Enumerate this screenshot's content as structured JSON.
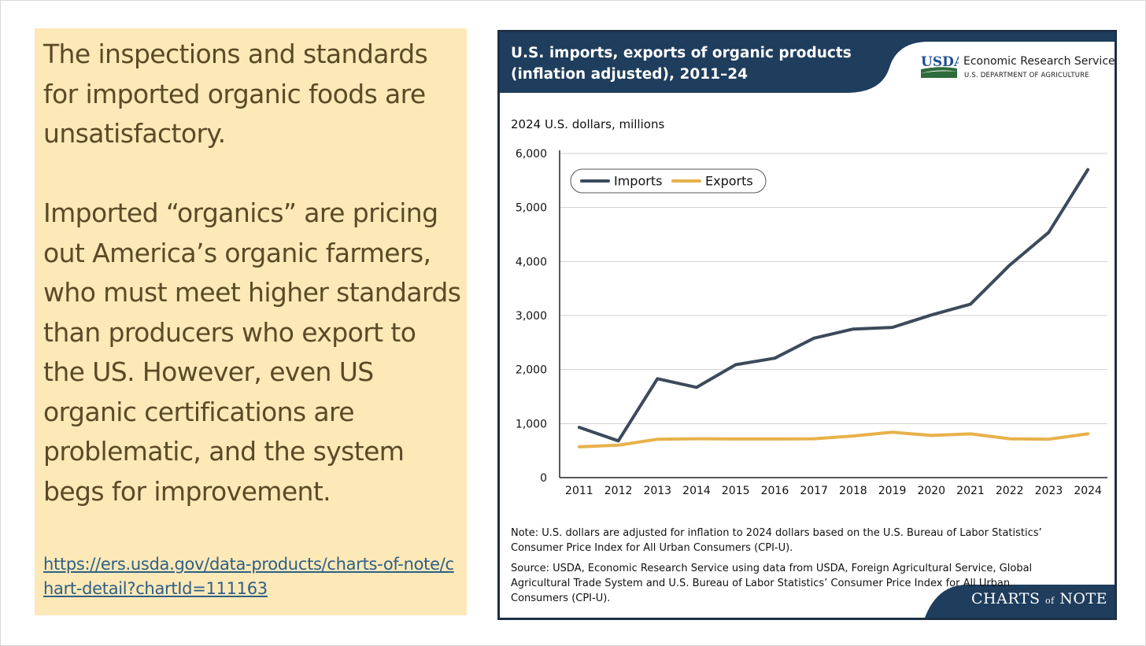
{
  "left_panel": {
    "paragraph1": "The inspections and standards for imported organic foods are unsatisfactory.",
    "paragraph2": "Imported “organics” are pricing out America’s organic farmers, who must meet higher standards than producers who export to the US. However, even US organic certifications are problematic, and the system begs for improvement.",
    "link_text": "https://ers.usda.gov/data-products/charts-of-note/chart-detail?chartId=111163"
  },
  "header": {
    "title": "U.S. imports, exports of organic products (inflation adjusted), 2011–24",
    "logo_text": "USDA",
    "agency_name": "Economic Research Service",
    "department": "U.S. DEPARTMENT OF AGRICULTURE"
  },
  "colors": {
    "navy": "#1f3d5c",
    "imports": "#3c4a5b",
    "exports": "#e8b14a",
    "usda_green": "#2e6b3a",
    "usda_blue": "#1d4f91"
  },
  "chart_data": {
    "type": "line",
    "ylabel": "2024 U.S. dollars, millions",
    "x": [
      "2011",
      "2012",
      "2013",
      "2014",
      "2015",
      "2016",
      "2017",
      "2018",
      "2019",
      "2020",
      "2021",
      "2022",
      "2023",
      "2024"
    ],
    "yticks": [
      "0",
      "1,000",
      "2,000",
      "3,000",
      "4,000",
      "5,000",
      "6,000"
    ],
    "ylim": [
      0,
      6000
    ],
    "grid": true,
    "legend_position": "top-left",
    "series": [
      {
        "name": "Imports",
        "values": [
          930,
          680,
          1830,
          1670,
          2090,
          2210,
          2580,
          2750,
          2780,
          3010,
          3210,
          3930,
          4540,
          5700
        ]
      },
      {
        "name": "Exports",
        "values": [
          570,
          600,
          710,
          720,
          715,
          715,
          720,
          770,
          840,
          780,
          810,
          720,
          710,
          810
        ]
      }
    ]
  },
  "notes": {
    "note": "Note: U.S. dollars are adjusted for inflation to 2024 dollars based on the U.S. Bureau of Labor Statistics’ Consumer Price Index for All Urban Consumers (CPI-U).",
    "source": "Source: USDA, Economic Research Service using data from USDA, Foreign Agricultural Service, Global Agricultural Trade System and U.S. Bureau of Labor Statistics’ Consumer Price Index for All Urban Consumers (CPI-U)."
  },
  "brand": {
    "charts": "CHARTS",
    "of": "of",
    "note": "NOTE"
  }
}
